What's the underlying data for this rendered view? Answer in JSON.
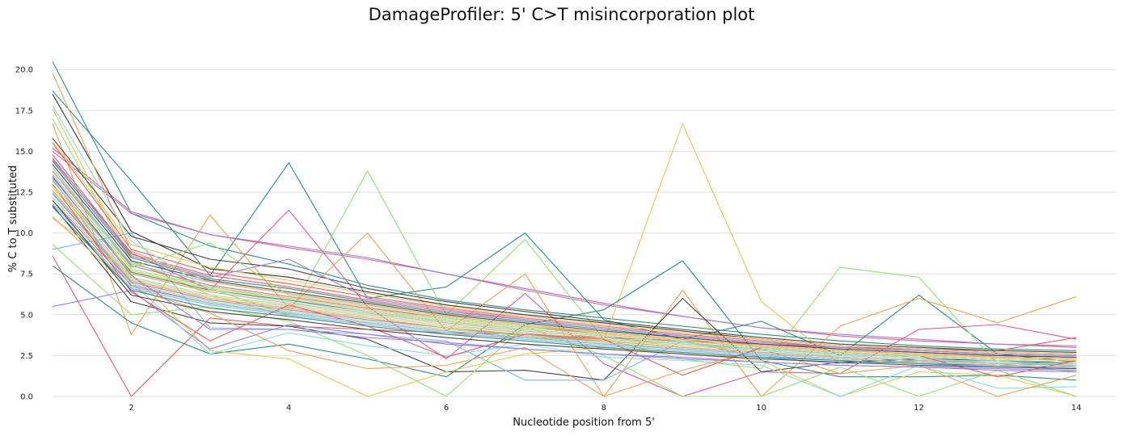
{
  "chart_data": {
    "type": "line",
    "title": "DamageProfiler: 5' C>T misincorporation plot",
    "xlabel": "Nucleotide position from 5'",
    "ylabel": "% C to T substituted",
    "xlim": [
      1,
      14.5
    ],
    "ylim": [
      0,
      21
    ],
    "x": [
      1,
      2,
      3,
      4,
      5,
      6,
      7,
      8,
      9,
      10,
      11,
      12,
      13,
      14
    ],
    "xticks": [
      "2",
      "4",
      "6",
      "8",
      "10",
      "12",
      "14"
    ],
    "yticks": [
      "0.0",
      "2.5",
      "5.0",
      "7.5",
      "10.0",
      "12.5",
      "15.0",
      "17.5",
      "20.0"
    ],
    "grid": "horizontal",
    "legend": "none",
    "series": [
      {
        "color": "#2a8f85",
        "values": [
          20.5,
          11.2,
          9.2,
          8.1,
          6.8,
          5.9,
          5.3,
          4.8,
          4.3,
          3.8,
          3.4,
          3.1,
          2.9,
          2.8
        ]
      },
      {
        "color": "#e85a8a",
        "values": [
          15.2,
          11.3,
          9.9,
          9.1,
          8.4,
          7.5,
          6.6,
          5.7,
          4.9,
          4.2,
          3.7,
          3.4,
          3.2,
          3.0
        ]
      },
      {
        "color": "#9b7de8",
        "values": [
          15.0,
          11.2,
          9.9,
          9.2,
          8.5,
          7.5,
          6.5,
          5.6,
          4.9,
          4.2,
          3.8,
          3.5,
          3.2,
          3.1
        ]
      },
      {
        "color": "#2a8f85",
        "values": [
          18.7,
          13.2,
          7.4,
          14.3,
          6.0,
          6.7,
          10.0,
          4.7,
          3.5,
          4.6,
          2.5,
          6.2,
          2.6,
          2.1
        ]
      },
      {
        "color": "#90e370",
        "values": [
          17.0,
          8.2,
          6.6,
          5.0,
          13.8,
          5.0,
          9.6,
          3.5,
          2.3,
          1.7,
          7.9,
          7.3,
          2.0,
          1.5
        ]
      },
      {
        "color": "#e8c84a",
        "values": [
          17.6,
          8.3,
          6.2,
          4.9,
          4.3,
          3.8,
          3.6,
          3.4,
          16.7,
          5.8,
          2.0,
          2.1,
          1.9,
          1.8
        ]
      },
      {
        "color": "#f0a050",
        "values": [
          16.7,
          3.8,
          11.1,
          5.4,
          10.0,
          4.0,
          7.5,
          0.0,
          6.5,
          0.0,
          4.3,
          6.0,
          4.5,
          6.1
        ]
      },
      {
        "color": "#e85a8a",
        "values": [
          14.5,
          8.8,
          6.5,
          11.4,
          5.5,
          2.3,
          6.3,
          2.0,
          0.0,
          1.5,
          1.4,
          4.1,
          4.4,
          3.5
        ]
      },
      {
        "color": "#ee5b5b",
        "values": [
          8.6,
          0.0,
          4.8,
          4.3,
          4.1,
          3.9,
          3.8,
          3.6,
          3.4,
          3.2,
          3.0,
          2.9,
          2.8,
          3.6
        ]
      },
      {
        "color": "#444444",
        "values": [
          11.7,
          5.8,
          4.5,
          4.3,
          3.5,
          1.5,
          1.6,
          1.0,
          6.0,
          1.5,
          2.1,
          2.3,
          2.2,
          2.0
        ]
      },
      {
        "color": "#7ab6ee",
        "values": [
          9.0,
          10.0,
          4.2,
          4.1,
          3.8,
          3.4,
          1.0,
          1.0,
          3.4,
          2.4,
          2.0,
          2.2,
          2.1,
          1.9
        ]
      },
      {
        "color": "#2a8f85",
        "values": [
          8.0,
          4.5,
          2.6,
          3.2,
          2.3,
          1.2,
          4.4,
          5.3,
          8.3,
          2.2,
          1.2,
          1.2,
          1.3,
          1.0
        ]
      },
      {
        "color": "#e8c84a",
        "values": [
          10.9,
          7.5,
          2.8,
          2.3,
          0.0,
          1.5,
          2.6,
          3.0,
          2.6,
          2.2,
          0.0,
          1.5,
          1.3,
          0.0
        ]
      },
      {
        "color": "#90e370",
        "values": [
          9.3,
          5.0,
          5.5,
          4.6,
          2.5,
          0.0,
          4.3,
          2.5,
          0.0,
          0.0,
          1.8,
          0.0,
          1.6,
          0.0
        ]
      },
      {
        "color": "#9b7de8",
        "values": [
          5.5,
          6.5,
          2.9,
          4.4,
          3.8,
          3.2,
          2.9,
          2.6,
          2.3,
          2.1,
          1.9,
          1.8,
          1.7,
          1.6
        ]
      },
      {
        "color": "#80e0d8",
        "values": [
          12.5,
          7.0,
          2.6,
          3.9,
          3.1,
          2.5,
          3.2,
          2.4,
          2.2,
          1.9,
          0.0,
          1.9,
          0.5,
          0.6
        ]
      },
      {
        "color": "#f0a050",
        "values": [
          11.0,
          6.6,
          5.1,
          2.8,
          1.7,
          1.9,
          3.0,
          0.0,
          1.6,
          2.9,
          1.4,
          1.9,
          0.0,
          1.3
        ]
      },
      {
        "color": "#444444",
        "values": [
          15.8,
          9.8,
          8.4,
          7.8,
          6.6,
          5.8,
          5.2,
          4.6,
          4.1,
          3.6,
          3.2,
          3.0,
          2.8,
          2.7
        ]
      },
      {
        "color": "#333333",
        "values": [
          18.5,
          10.1,
          7.8,
          7.3,
          6.4,
          5.6,
          5.0,
          4.5,
          4.0,
          3.5,
          3.1,
          2.9,
          2.7,
          2.6
        ]
      },
      {
        "color": "#ee5b5b",
        "values": [
          15.5,
          9.0,
          7.6,
          6.9,
          6.1,
          5.4,
          4.8,
          4.3,
          3.8,
          3.4,
          3.0,
          2.8,
          2.6,
          2.5
        ]
      },
      {
        "color": "#2a8f85",
        "values": [
          14.4,
          8.5,
          7.2,
          6.6,
          5.8,
          5.1,
          4.6,
          4.1,
          3.6,
          3.2,
          2.9,
          2.7,
          2.5,
          2.4
        ]
      },
      {
        "color": "#7ab6ee",
        "values": [
          14.0,
          8.1,
          7.0,
          6.3,
          5.6,
          4.9,
          4.4,
          3.9,
          3.5,
          3.1,
          2.8,
          2.6,
          2.4,
          2.3
        ]
      },
      {
        "color": "#90e370",
        "values": [
          13.6,
          7.8,
          6.7,
          6.0,
          5.3,
          4.7,
          4.2,
          3.8,
          3.4,
          3.0,
          2.7,
          2.5,
          2.3,
          2.2
        ]
      },
      {
        "color": "#f0a050",
        "values": [
          13.2,
          7.5,
          6.4,
          5.7,
          5.1,
          4.5,
          4.0,
          3.6,
          3.2,
          2.9,
          2.6,
          2.4,
          2.2,
          2.1
        ]
      },
      {
        "color": "#e8c84a",
        "values": [
          12.8,
          7.2,
          6.1,
          5.5,
          4.9,
          4.3,
          3.9,
          3.5,
          3.1,
          2.8,
          2.5,
          2.3,
          2.1,
          2.0
        ]
      },
      {
        "color": "#9b7de8",
        "values": [
          12.4,
          7.0,
          5.9,
          5.3,
          4.7,
          4.2,
          3.7,
          3.4,
          3.0,
          2.7,
          2.4,
          2.2,
          2.0,
          1.9
        ]
      },
      {
        "color": "#e85a8a",
        "values": [
          12.0,
          6.8,
          5.7,
          5.1,
          4.5,
          4.0,
          3.6,
          3.2,
          2.9,
          2.6,
          2.3,
          2.1,
          1.9,
          1.8
        ]
      },
      {
        "color": "#80e0d8",
        "values": [
          13.0,
          7.3,
          6.2,
          5.6,
          5.0,
          4.4,
          3.9,
          3.5,
          3.2,
          2.8,
          2.5,
          2.3,
          2.1,
          2.0
        ]
      },
      {
        "color": "#ee5b5b",
        "values": [
          14.8,
          8.7,
          7.4,
          6.7,
          5.9,
          5.2,
          4.7,
          4.2,
          3.7,
          3.3,
          3.0,
          2.8,
          2.6,
          2.5
        ]
      },
      {
        "color": "#444444",
        "values": [
          14.2,
          8.3,
          7.1,
          6.4,
          5.7,
          5.0,
          4.5,
          4.0,
          3.6,
          3.2,
          2.9,
          2.7,
          2.5,
          2.4
        ]
      },
      {
        "color": "#2a8f85",
        "values": [
          13.4,
          7.6,
          6.5,
          5.9,
          5.2,
          4.6,
          4.1,
          3.7,
          3.3,
          2.9,
          2.6,
          2.4,
          2.2,
          2.1
        ]
      },
      {
        "color": "#f0a050",
        "values": [
          12.6,
          7.1,
          6.0,
          5.4,
          4.8,
          4.2,
          3.8,
          3.4,
          3.0,
          2.7,
          2.4,
          2.2,
          2.0,
          1.9
        ]
      },
      {
        "color": "#90e370",
        "values": [
          12.2,
          6.9,
          5.8,
          5.2,
          4.6,
          4.1,
          3.7,
          3.3,
          2.9,
          2.6,
          2.3,
          2.1,
          1.9,
          1.8
        ]
      },
      {
        "color": "#7ab6ee",
        "values": [
          11.8,
          6.6,
          5.6,
          5.0,
          4.4,
          3.9,
          3.5,
          3.1,
          2.8,
          2.5,
          2.2,
          2.0,
          1.8,
          1.7
        ]
      },
      {
        "color": "#e8c84a",
        "values": [
          15.6,
          9.3,
          7.9,
          7.1,
          6.3,
          5.5,
          4.9,
          4.4,
          3.9,
          3.5,
          3.1,
          2.9,
          2.7,
          2.6
        ]
      },
      {
        "color": "#9b7de8",
        "values": [
          14.6,
          8.6,
          7.3,
          8.4,
          6.0,
          5.3,
          4.7,
          4.2,
          3.7,
          3.3,
          3.0,
          2.8,
          2.6,
          2.5
        ]
      },
      {
        "color": "#e85a8a",
        "values": [
          13.8,
          8.0,
          6.8,
          6.1,
          5.4,
          4.8,
          4.3,
          3.8,
          3.4,
          3.0,
          2.7,
          2.5,
          2.3,
          2.2
        ]
      },
      {
        "color": "#80e0d8",
        "values": [
          17.8,
          9.5,
          6.5,
          5.8,
          5.2,
          4.6,
          4.1,
          3.7,
          3.3,
          2.9,
          2.6,
          2.4,
          2.2,
          2.1
        ]
      },
      {
        "color": "#ee5b5b",
        "values": [
          13.0,
          6.4,
          3.4,
          5.6,
          4.3,
          2.4,
          3.8,
          3.5,
          1.3,
          3.0,
          2.7,
          2.5,
          1.2,
          2.2
        ]
      },
      {
        "color": "#444444",
        "values": [
          12.0,
          6.2,
          5.2,
          4.7,
          4.1,
          3.6,
          3.2,
          2.9,
          2.6,
          2.3,
          2.1,
          1.9,
          1.8,
          1.7
        ]
      },
      {
        "color": "#2a8f85",
        "values": [
          11.6,
          6.5,
          5.4,
          4.9,
          4.3,
          3.8,
          3.4,
          3.0,
          2.7,
          2.4,
          2.2,
          2.0,
          1.9,
          1.8
        ]
      },
      {
        "color": "#90e370",
        "values": [
          14.0,
          7.9,
          9.4,
          6.2,
          5.5,
          4.8,
          4.3,
          3.9,
          3.5,
          3.1,
          2.8,
          2.6,
          2.4,
          2.3
        ]
      },
      {
        "color": "#f0a050",
        "values": [
          19.8,
          8.9,
          7.0,
          6.3,
          5.6,
          4.9,
          4.4,
          3.9,
          3.5,
          3.1,
          2.8,
          2.6,
          2.4,
          2.3
        ]
      },
      {
        "color": "#7ab6ee",
        "values": [
          13.3,
          6.7,
          5.7,
          5.1,
          4.5,
          4.0,
          3.6,
          3.2,
          2.9,
          2.6,
          2.3,
          2.1,
          1.9,
          1.8
        ]
      },
      {
        "color": "#e8c84a",
        "values": [
          12.9,
          7.7,
          6.6,
          6.0,
          5.3,
          4.7,
          4.2,
          3.8,
          3.4,
          3.0,
          2.7,
          2.5,
          2.3,
          2.2
        ]
      },
      {
        "color": "#9b7de8",
        "values": [
          13.5,
          7.4,
          4.1,
          4.1,
          3.6,
          3.3,
          2.9,
          2.6,
          2.4,
          2.1,
          1.9,
          1.8,
          1.6,
          1.5
        ]
      }
    ]
  }
}
